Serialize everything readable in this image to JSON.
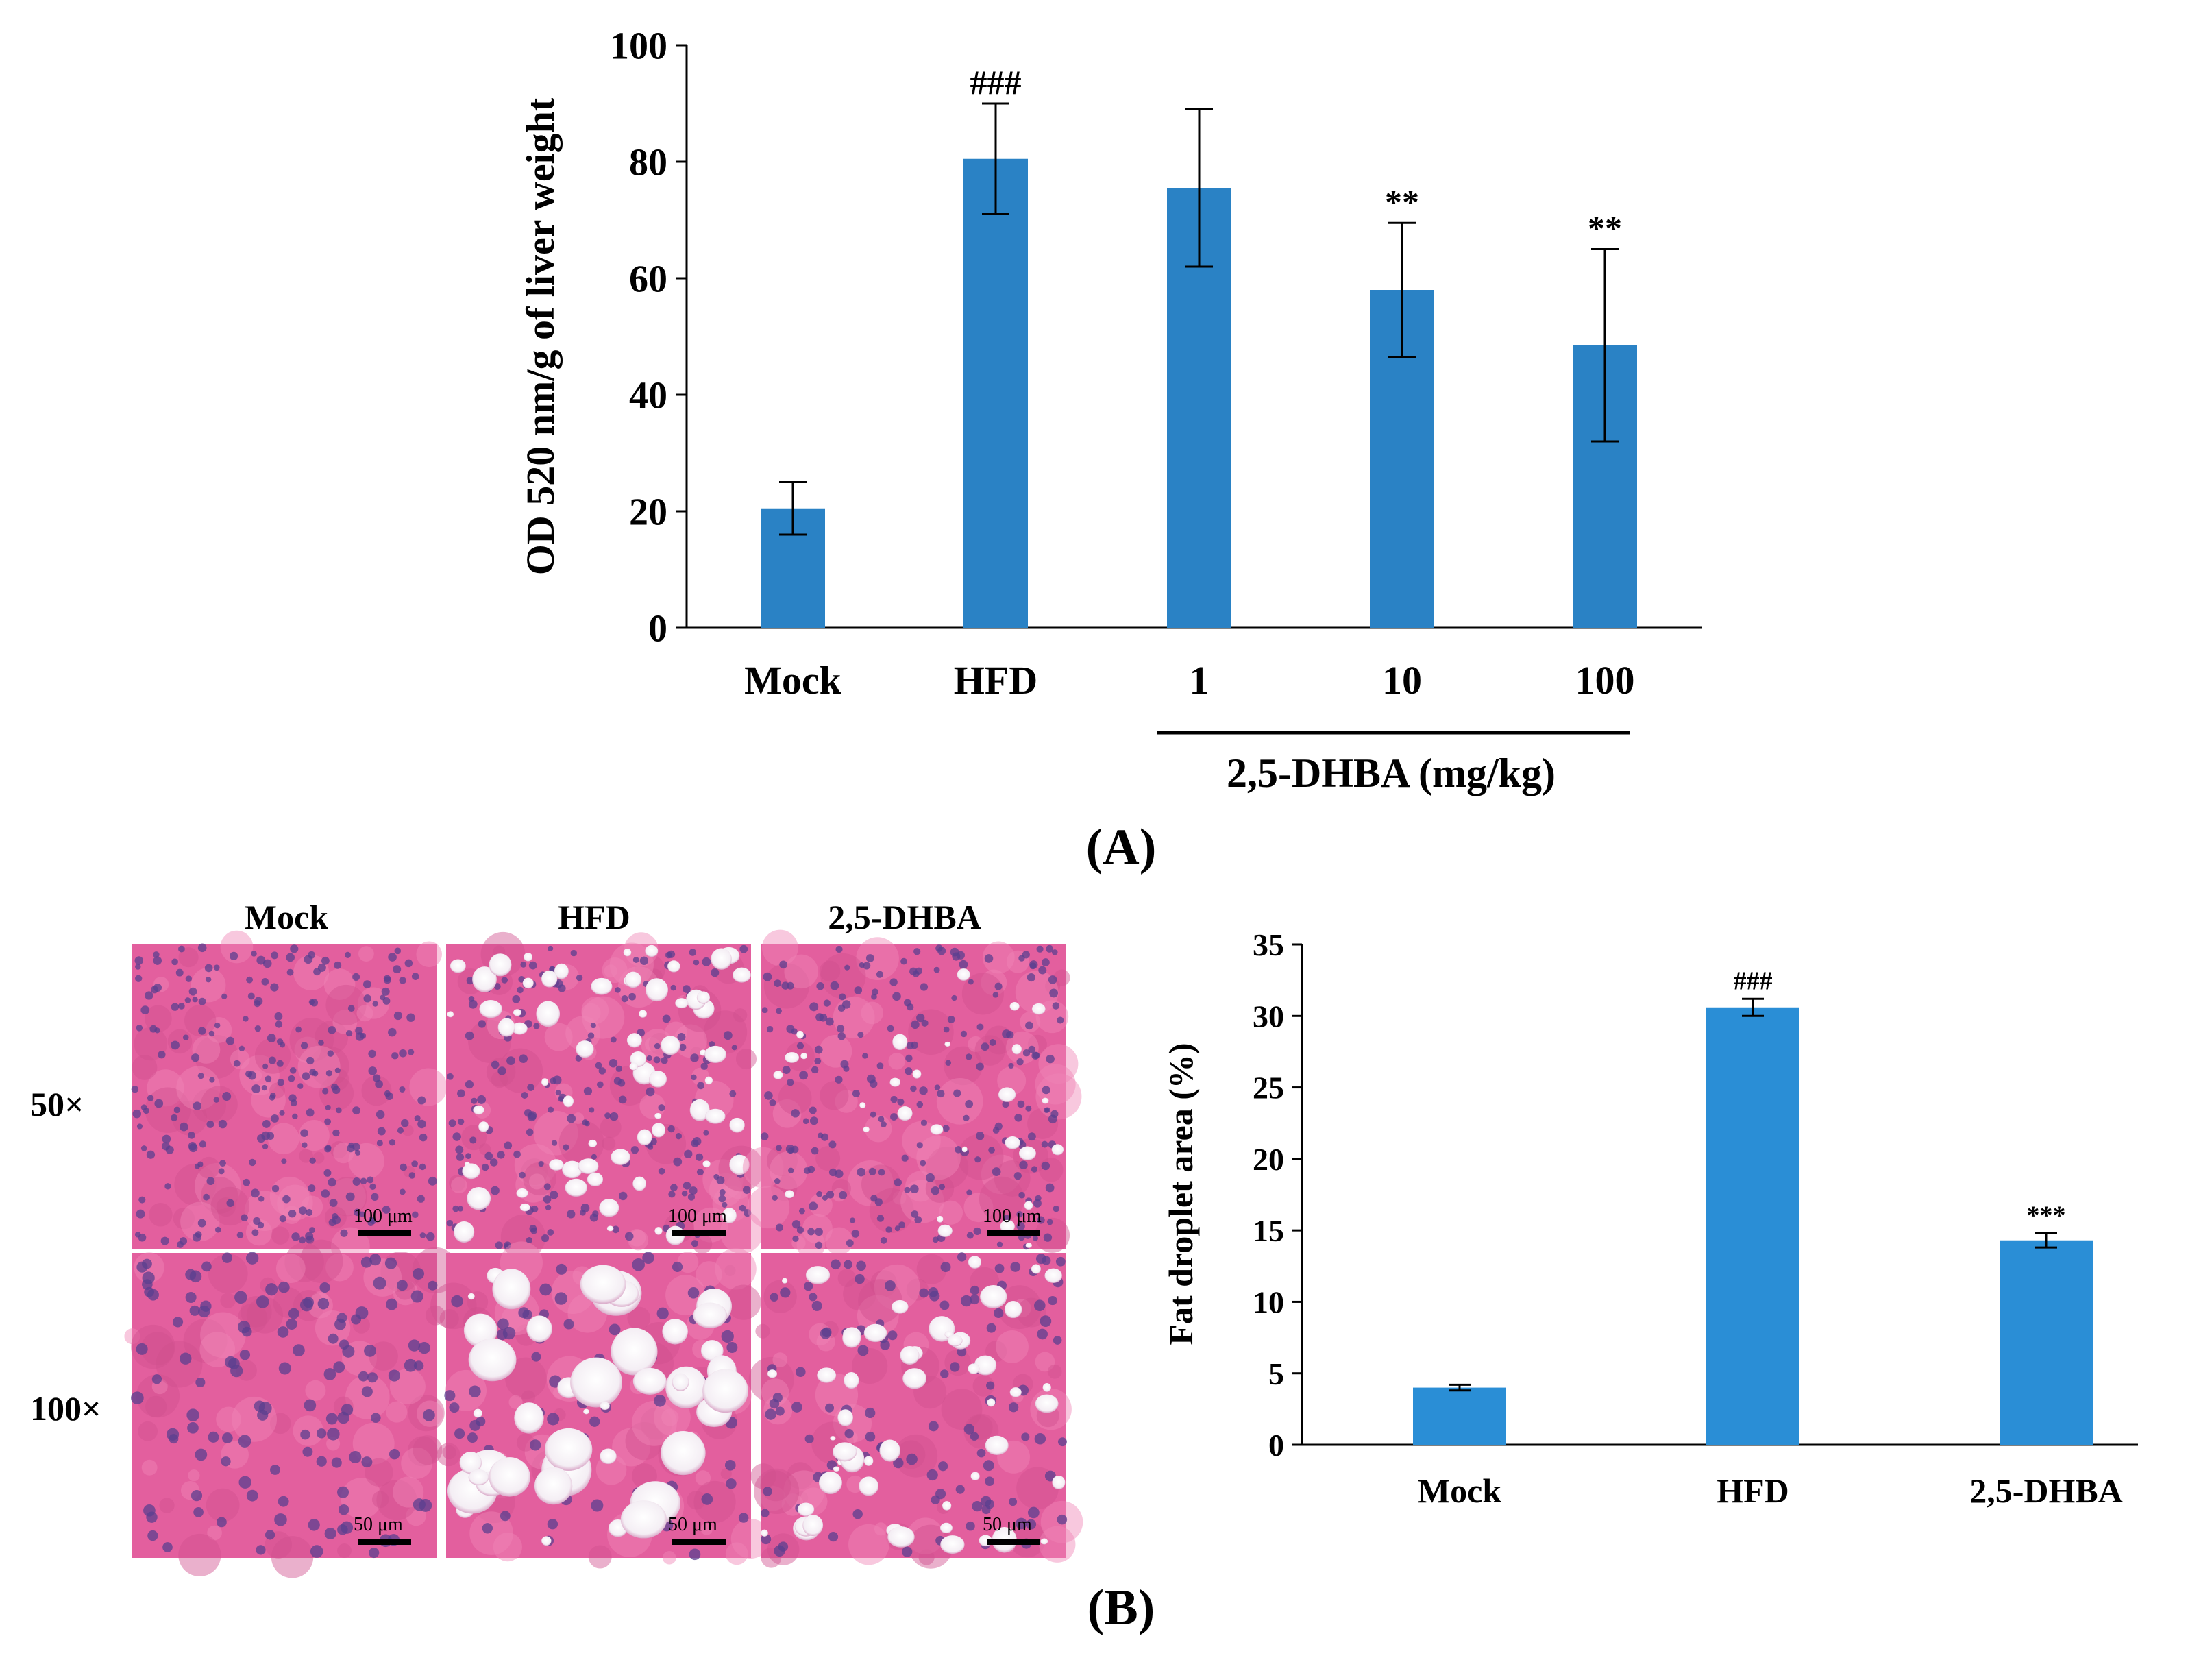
{
  "chart_data": [
    {
      "type": "bar",
      "panel": "A",
      "categories": [
        "Mock",
        "HFD",
        "1",
        "10",
        "100"
      ],
      "values": [
        20.5,
        80.5,
        75.5,
        58,
        48.5
      ],
      "errors": [
        4.5,
        9.5,
        13.5,
        11.5,
        16.5
      ],
      "significance": [
        "",
        "###",
        "",
        "**",
        "**"
      ],
      "ylabel": "OD 520 nm/g of liver weight",
      "xlabel": "",
      "group_label": "2,5-DHBA (mg/kg)",
      "ylim": [
        0,
        100
      ],
      "yticks": [
        0,
        20,
        40,
        60,
        80,
        100
      ],
      "color": "#2a82c5"
    },
    {
      "type": "bar",
      "panel": "B",
      "categories": [
        "Mock",
        "HFD",
        "2,5-DHBA"
      ],
      "values": [
        4,
        30.6,
        14.3
      ],
      "errors": [
        0.2,
        0.6,
        0.5
      ],
      "significance": [
        "",
        "###",
        "***"
      ],
      "ylabel": "Fat droplet area (%)",
      "xlabel": "",
      "ylim": [
        0,
        35
      ],
      "yticks": [
        0,
        5,
        10,
        15,
        20,
        25,
        30,
        35
      ],
      "color": "#2a8ed6"
    }
  ],
  "panel_labels": {
    "a": "(A)",
    "b": "(B)"
  },
  "histology": {
    "columns": [
      "Mock",
      "HFD",
      "2,5-DHBA"
    ],
    "rows": [
      "50×",
      "100×"
    ],
    "scale_50x": "100 μm",
    "scale_100x": "50 μm"
  }
}
